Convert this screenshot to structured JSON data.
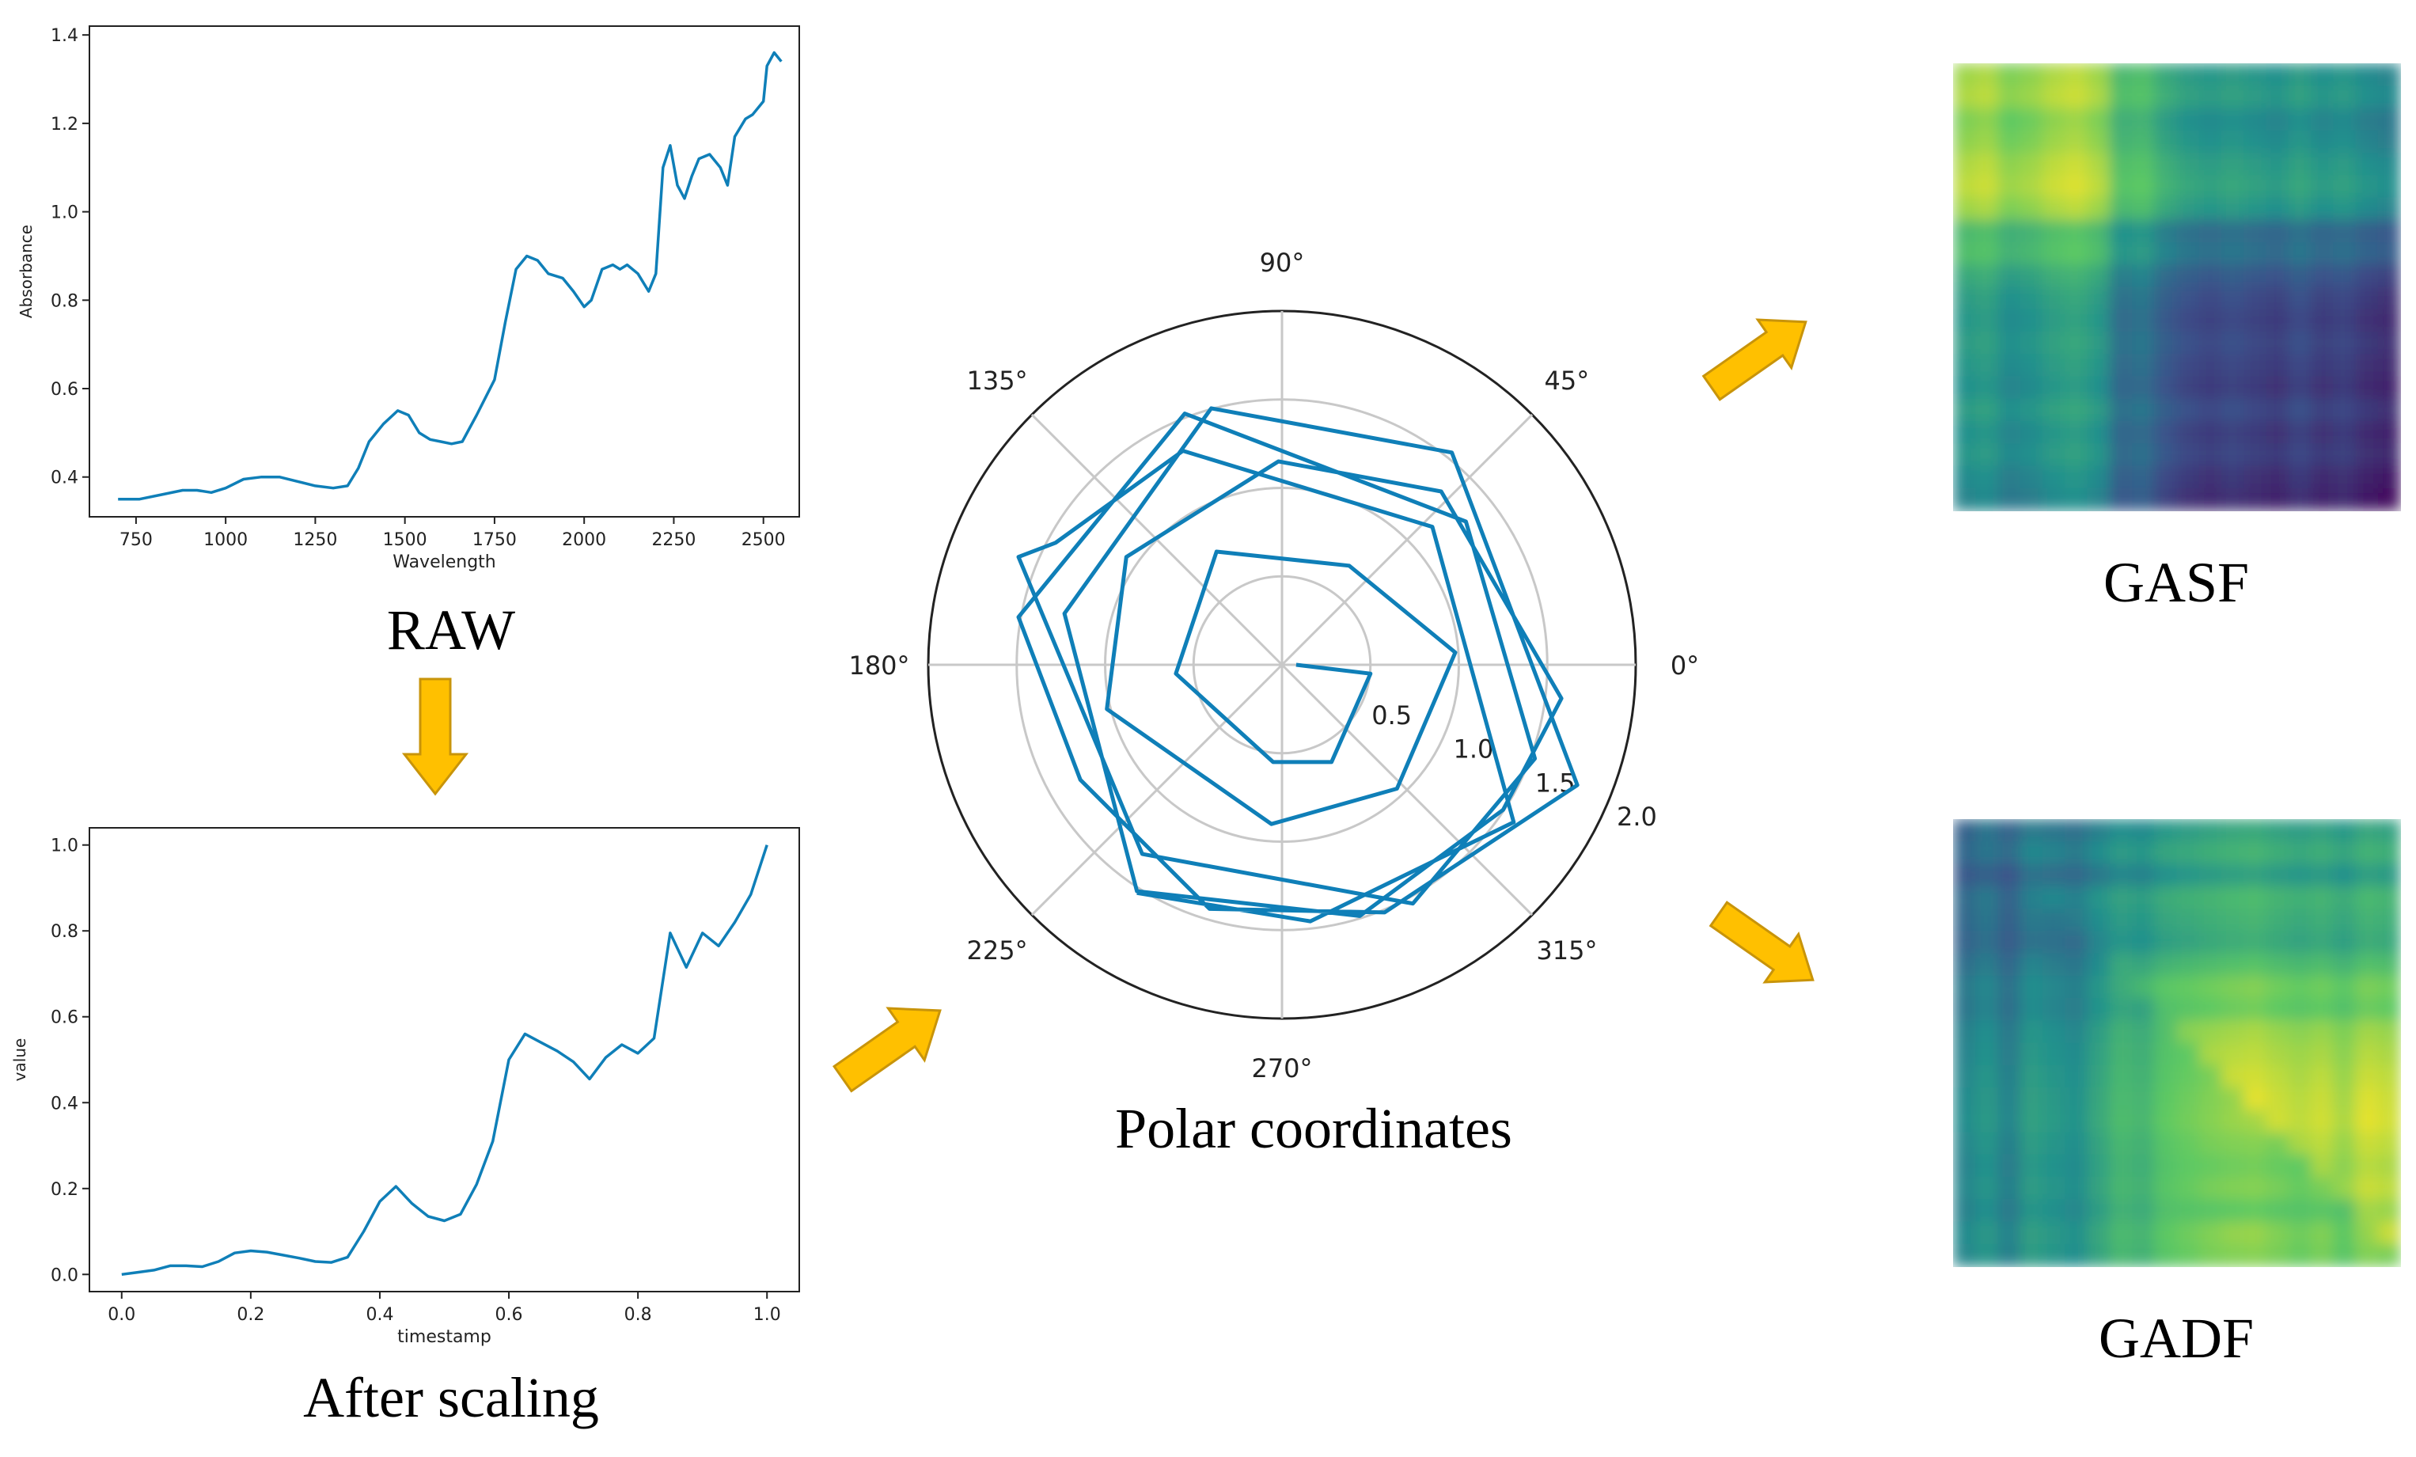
{
  "colors": {
    "line": "#0f7fb8",
    "arrow_fill": "#ffc000",
    "arrow_stroke": "#c8940a",
    "axis": "#222222",
    "grid": "#c8c8c8"
  },
  "captions": {
    "raw": "RAW",
    "after_scaling": "After scaling",
    "polar": "Polar coordinates",
    "gasf": "GASF",
    "gadf": "GADF"
  },
  "raw_chart": {
    "type": "line",
    "xlabel": "Wavelength",
    "ylabel": "Absorbance",
    "xlim": [
      620,
      2600
    ],
    "ylim": [
      0.31,
      1.42
    ],
    "xticks": [
      750,
      1000,
      1250,
      1500,
      1750,
      2000,
      2250,
      2500
    ],
    "yticks": [
      0.4,
      0.6,
      0.8,
      1.0,
      1.2,
      1.4
    ],
    "ytick_labels": [
      "0.4",
      "0.6",
      "0.8",
      "1.0",
      "1.2",
      "1.4"
    ],
    "x": [
      700,
      760,
      820,
      880,
      920,
      960,
      1000,
      1050,
      1100,
      1150,
      1200,
      1250,
      1300,
      1340,
      1370,
      1400,
      1440,
      1480,
      1510,
      1540,
      1570,
      1600,
      1630,
      1660,
      1700,
      1750,
      1780,
      1810,
      1840,
      1870,
      1900,
      1940,
      1970,
      2000,
      2020,
      2050,
      2080,
      2100,
      2120,
      2150,
      2180,
      2200,
      2220,
      2240,
      2260,
      2280,
      2300,
      2320,
      2350,
      2380,
      2400,
      2420,
      2450,
      2470,
      2500,
      2510,
      2530,
      2550
    ],
    "y": [
      0.35,
      0.35,
      0.36,
      0.37,
      0.37,
      0.365,
      0.375,
      0.395,
      0.4,
      0.4,
      0.39,
      0.38,
      0.375,
      0.38,
      0.42,
      0.48,
      0.52,
      0.55,
      0.54,
      0.5,
      0.485,
      0.48,
      0.475,
      0.48,
      0.54,
      0.62,
      0.75,
      0.87,
      0.9,
      0.89,
      0.86,
      0.85,
      0.82,
      0.785,
      0.8,
      0.87,
      0.88,
      0.87,
      0.88,
      0.86,
      0.82,
      0.86,
      1.1,
      1.15,
      1.06,
      1.03,
      1.08,
      1.12,
      1.13,
      1.1,
      1.06,
      1.17,
      1.21,
      1.22,
      1.25,
      1.33,
      1.36,
      1.34
    ]
  },
  "scaled_chart": {
    "type": "line",
    "xlabel": "timestamp",
    "ylabel": "value",
    "xlim": [
      -0.05,
      1.05
    ],
    "ylim": [
      -0.04,
      1.04
    ],
    "xticks": [
      0.0,
      0.2,
      0.4,
      0.6,
      0.8,
      1.0
    ],
    "xtick_labels": [
      "0.0",
      "0.2",
      "0.4",
      "0.6",
      "0.8",
      "1.0"
    ],
    "yticks": [
      0.0,
      0.2,
      0.4,
      0.6,
      0.8,
      1.0
    ],
    "ytick_labels": [
      "0.0",
      "0.2",
      "0.4",
      "0.6",
      "0.8",
      "1.0"
    ],
    "x": [
      0.0,
      0.025,
      0.05,
      0.075,
      0.1,
      0.125,
      0.15,
      0.175,
      0.2,
      0.225,
      0.25,
      0.275,
      0.3,
      0.325,
      0.35,
      0.375,
      0.4,
      0.425,
      0.45,
      0.475,
      0.5,
      0.525,
      0.55,
      0.575,
      0.6,
      0.625,
      0.65,
      0.675,
      0.7,
      0.725,
      0.75,
      0.775,
      0.8,
      0.825,
      0.85,
      0.875,
      0.9,
      0.925,
      0.95,
      0.975,
      1.0
    ],
    "y": [
      0.0,
      0.005,
      0.01,
      0.02,
      0.02,
      0.018,
      0.03,
      0.05,
      0.055,
      0.052,
      0.045,
      0.038,
      0.03,
      0.028,
      0.04,
      0.1,
      0.17,
      0.205,
      0.165,
      0.135,
      0.125,
      0.14,
      0.21,
      0.31,
      0.5,
      0.56,
      0.54,
      0.52,
      0.495,
      0.455,
      0.505,
      0.535,
      0.515,
      0.55,
      0.795,
      0.715,
      0.795,
      0.765,
      0.82,
      0.885,
      1.0
    ]
  },
  "polar_chart": {
    "type": "line",
    "rmax": 2.0,
    "rgrid": [
      0.5,
      1.0,
      1.5,
      2.0
    ],
    "rtick_labels": [
      "0.5",
      "1.0",
      "1.5",
      "2.0"
    ],
    "angle_labels": [
      "0°",
      "45°",
      "90°",
      "135°",
      "180°",
      "225°",
      "270°",
      "315°"
    ],
    "points": [
      [
        0.08,
        0.0
      ],
      [
        0.5,
        -0.05
      ],
      [
        0.28,
        -0.55
      ],
      [
        -0.05,
        -0.55
      ],
      [
        -0.6,
        -0.05
      ],
      [
        -0.37,
        0.64
      ],
      [
        0.38,
        0.56
      ],
      [
        0.98,
        0.07
      ],
      [
        0.65,
        -0.7
      ],
      [
        -0.06,
        -0.9
      ],
      [
        -0.99,
        -0.25
      ],
      [
        -0.88,
        0.61
      ],
      [
        -0.02,
        1.15
      ],
      [
        0.9,
        0.98
      ],
      [
        1.58,
        -0.19
      ],
      [
        1.25,
        -0.82
      ],
      [
        0.44,
        -1.42
      ],
      [
        -0.82,
        -1.28
      ],
      [
        -1.23,
        0.29
      ],
      [
        -0.4,
        1.45
      ],
      [
        0.96,
        1.2
      ],
      [
        1.67,
        -0.68
      ],
      [
        0.58,
        -1.4
      ],
      [
        -0.41,
        -1.38
      ],
      [
        -1.14,
        -0.65
      ],
      [
        -1.49,
        0.27
      ],
      [
        -0.55,
        1.42
      ],
      [
        1.04,
        0.81
      ],
      [
        1.43,
        -0.53
      ],
      [
        0.74,
        -1.35
      ],
      [
        -0.79,
        -1.07
      ],
      [
        -1.49,
        0.61
      ],
      [
        -1.28,
        0.69
      ],
      [
        -0.56,
        1.21
      ],
      [
        0.85,
        0.78
      ],
      [
        1.31,
        -0.89
      ],
      [
        0.16,
        -1.45
      ],
      [
        -0.82,
        -1.29
      ]
    ]
  },
  "gasf_image": {
    "cmap": [
      "#440154",
      "#3b528b",
      "#21908d",
      "#5dc963",
      "#fde725"
    ],
    "profile": [
      0.85,
      0.9,
      0.75,
      0.8,
      0.9,
      0.95,
      0.85,
      0.5,
      0.55,
      0.35,
      0.25,
      0.2,
      0.25,
      0.2,
      0.15,
      0.25,
      0.15,
      0.2,
      0.1,
      0.05
    ]
  },
  "gadf_image": {
    "cmap": [
      "#440154",
      "#3b528b",
      "#21908d",
      "#5dc963",
      "#fde725"
    ],
    "profile": [
      0.35,
      0.45,
      0.3,
      0.5,
      0.45,
      0.4,
      0.55,
      0.7,
      0.65,
      0.8,
      0.85,
      0.9,
      0.95,
      0.98,
      0.9,
      0.85,
      0.9,
      0.8,
      0.95,
      0.9
    ]
  }
}
